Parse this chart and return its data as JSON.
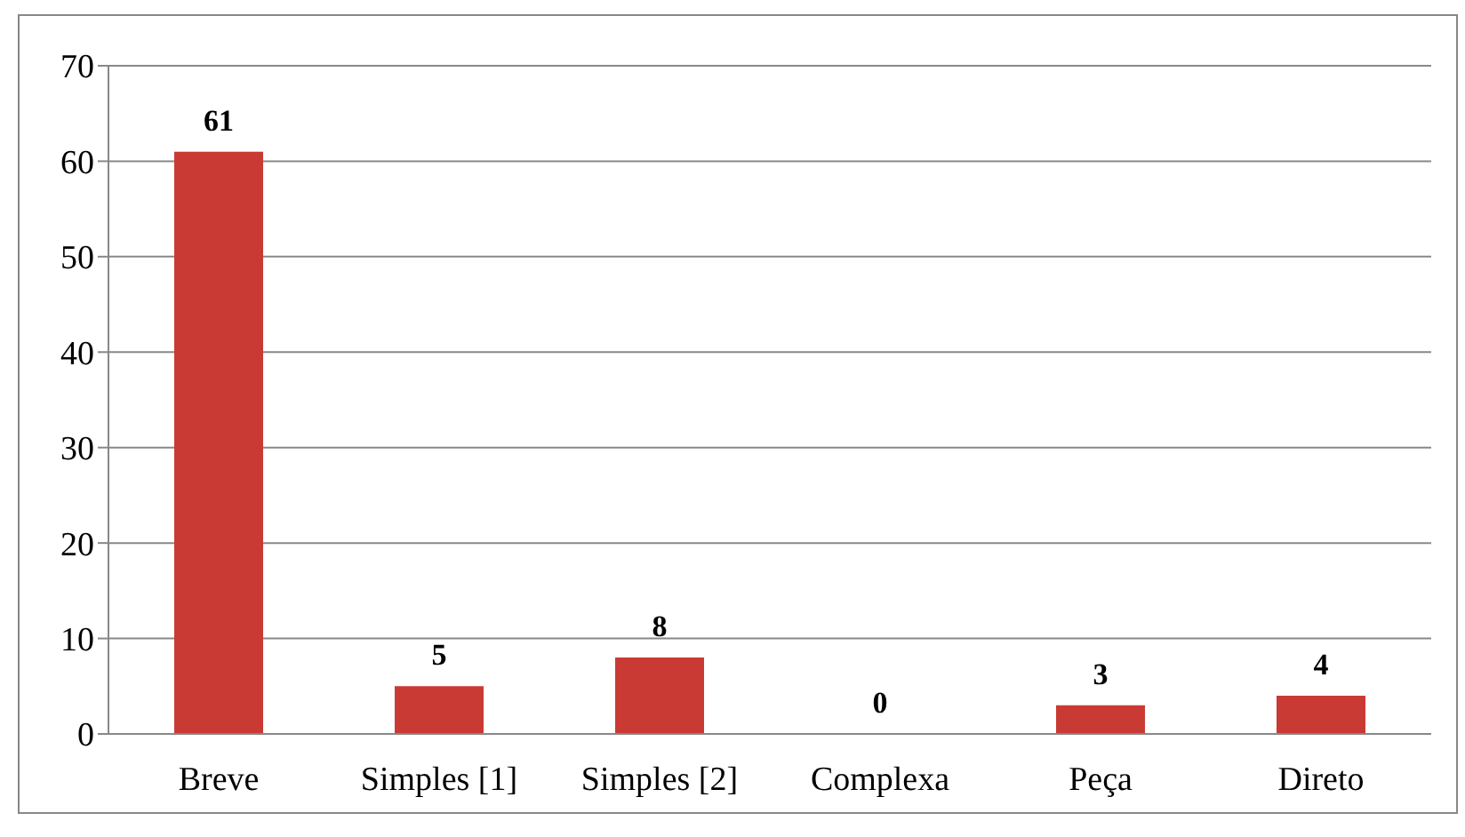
{
  "chart_data": {
    "type": "bar",
    "categories": [
      "Breve",
      "Simples [1]",
      "Simples [2]",
      "Complexa",
      "Peça",
      "Direto"
    ],
    "values": [
      61,
      5,
      8,
      0,
      3,
      4
    ],
    "color": "#c93a35",
    "ylim": [
      0,
      70
    ],
    "yticks": [
      0,
      10,
      20,
      30,
      40,
      50,
      60,
      70
    ],
    "grid": "y",
    "data_labels": true
  }
}
